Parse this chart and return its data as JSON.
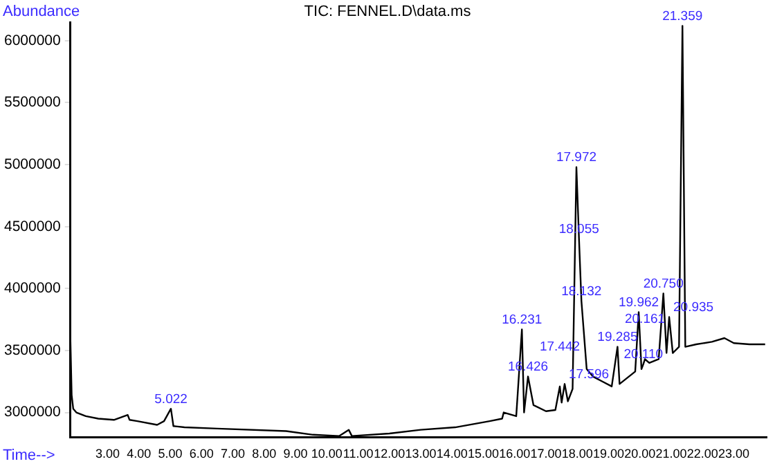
{
  "chart_data": {
    "type": "line",
    "title": "TIC: FENNEL.D\\data.ms",
    "xlabel": "Time-->",
    "ylabel": "Abundance",
    "series": [
      {
        "color": "#000000",
        "x": [
          1.81,
          1.85,
          1.9,
          2.0,
          2.3,
          2.7,
          3.2,
          3.64,
          3.7,
          3.95,
          4.58,
          4.8,
          5.02,
          5.1,
          5.45,
          6.5,
          8.7,
          9.56,
          10.4,
          10.7,
          10.8,
          12.0,
          13.0,
          14.1,
          15.2,
          15.6,
          15.65,
          16.05,
          16.231,
          16.3,
          16.426,
          16.6,
          17.0,
          17.3,
          17.442,
          17.5,
          17.596,
          17.7,
          17.85,
          17.972,
          18.055,
          18.132,
          18.3,
          18.5,
          18.8,
          19.1,
          19.285,
          19.35,
          19.6,
          19.85,
          19.962,
          20.05,
          20.11,
          20.161,
          20.3,
          20.6,
          20.75,
          20.85,
          20.935,
          21.05,
          21.25,
          21.359,
          21.45,
          21.8,
          22.3,
          22.7,
          23.0,
          23.5,
          24.0
        ],
        "values": [
          3590000,
          3140000,
          3030000,
          3000000,
          2970000,
          2950000,
          2940000,
          2980000,
          2940000,
          2930000,
          2900000,
          2930000,
          3030000,
          2890000,
          2880000,
          2870000,
          2850000,
          2820000,
          2810000,
          2860000,
          2810000,
          2830000,
          2860000,
          2880000,
          2930000,
          2950000,
          3000000,
          2970000,
          3670000,
          3000000,
          3290000,
          3060000,
          3010000,
          3020000,
          3210000,
          3080000,
          3230000,
          3090000,
          3190000,
          4980000,
          4400000,
          3900000,
          3350000,
          3290000,
          3250000,
          3210000,
          3530000,
          3230000,
          3280000,
          3330000,
          3810000,
          3350000,
          3390000,
          3430000,
          3400000,
          3430000,
          3960000,
          3480000,
          3770000,
          3480000,
          3530000,
          6120000,
          3530000,
          3550000,
          3570000,
          3600000,
          3560000,
          3550000,
          3550000
        ]
      }
    ],
    "xlim": [
      1.81,
      24.05
    ],
    "ylim": [
      2800000,
      6150000
    ],
    "xticks": [
      {
        "value": 3,
        "label": "3.00"
      },
      {
        "value": 4,
        "label": "4.00"
      },
      {
        "value": 5,
        "label": "5.00"
      },
      {
        "value": 6,
        "label": "6.00"
      },
      {
        "value": 7,
        "label": "7.00"
      },
      {
        "value": 8,
        "label": "8.00"
      },
      {
        "value": 9,
        "label": "9.00"
      },
      {
        "value": 10,
        "label": "10.00"
      },
      {
        "value": 11,
        "label": "11.00"
      },
      {
        "value": 12,
        "label": "12.00"
      },
      {
        "value": 13,
        "label": "13.00"
      },
      {
        "value": 14,
        "label": "14.00"
      },
      {
        "value": 15,
        "label": "15.00"
      },
      {
        "value": 16,
        "label": "16.00"
      },
      {
        "value": 17,
        "label": "17.00"
      },
      {
        "value": 18,
        "label": "18.00"
      },
      {
        "value": 19,
        "label": "19.00"
      },
      {
        "value": 20,
        "label": "20.00"
      },
      {
        "value": 21,
        "label": "21.00"
      },
      {
        "value": 22,
        "label": "22.00"
      },
      {
        "value": 23,
        "label": "23.00"
      }
    ],
    "yticks": [
      3000000,
      3500000,
      4000000,
      4500000,
      5000000,
      5500000,
      6000000
    ],
    "grid": false,
    "legend": false,
    "marker": "none",
    "line_style": "solid",
    "annotations": [
      {
        "text": "5.022",
        "x": 5.022,
        "y": 3030000
      },
      {
        "text": "16.231",
        "x": 16.231,
        "y": 3670000
      },
      {
        "text": "16.426",
        "x": 16.426,
        "y": 3290000
      },
      {
        "text": "17.442",
        "x": 17.442,
        "y": 3210000
      },
      {
        "text": "17.596",
        "x": 17.596,
        "y": 3230000
      },
      {
        "text": "17.972",
        "x": 17.972,
        "y": 4980000
      },
      {
        "text": "18.055",
        "x": 18.055,
        "y": 4400000
      },
      {
        "text": "18.132",
        "x": 18.132,
        "y": 3900000
      },
      {
        "text": "19.285",
        "x": 19.285,
        "y": 3530000
      },
      {
        "text": "19.962",
        "x": 19.962,
        "y": 3810000
      },
      {
        "text": "20.110",
        "x": 20.11,
        "y": 3390000
      },
      {
        "text": "20.161",
        "x": 20.161,
        "y": 3430000
      },
      {
        "text": "20.750",
        "x": 20.75,
        "y": 3960000
      },
      {
        "text": "20.935",
        "x": 20.935,
        "y": 3770000
      },
      {
        "text": "21.359",
        "x": 21.359,
        "y": 6120000
      }
    ]
  }
}
